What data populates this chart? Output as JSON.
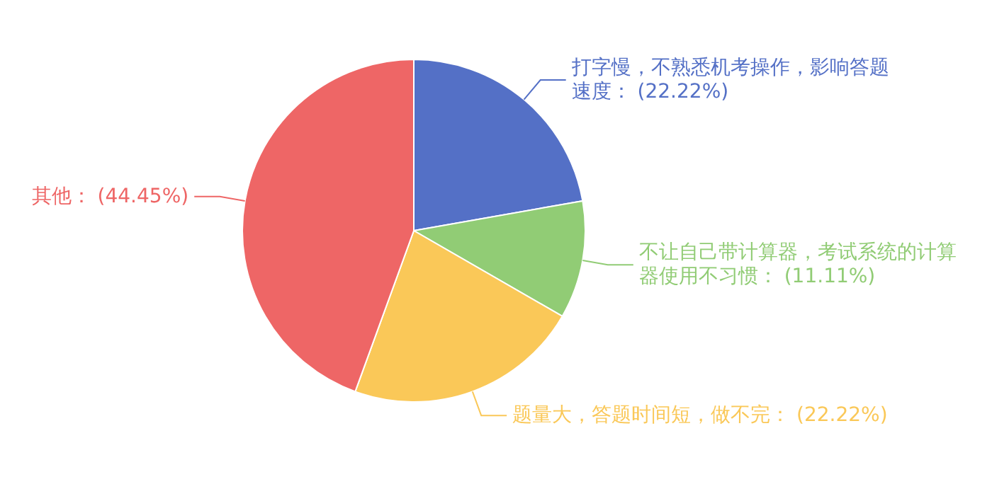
{
  "chart_data": {
    "type": "pie",
    "categories": [
      "打字慢，不熟悉机考操作，影响答题速度",
      "不让自己带计算器，考试系统的计算器使用不习惯",
      "题量大，答题时间短，做不完",
      "其他"
    ],
    "values": [
      22.22,
      11.11,
      22.22,
      44.45
    ],
    "colors": [
      "#5470c6",
      "#91cc75",
      "#fac858",
      "#ee6666"
    ],
    "value_labels": [
      "(22.22%)",
      "(11.11%)",
      "(22.22%)",
      "(44.45%)"
    ]
  }
}
